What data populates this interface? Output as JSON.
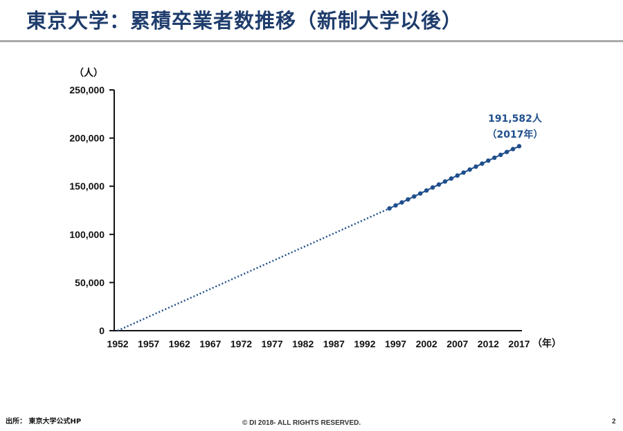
{
  "slide": {
    "title": "東京大学：累積卒業者数推移（新制大学以後）",
    "source": "出所：  東京大学公式HP",
    "copyright": "© DI 2018- ALL RIGHTS RESERVED.",
    "page_number": "2"
  },
  "colors": {
    "title": "#1f3d6d",
    "series": "#1f4e8c",
    "rule": "#a9a9a9"
  },
  "chart_data": {
    "type": "line",
    "title": "",
    "ylabel": "（人）",
    "xlabel": "（年）",
    "xlim": [
      1952,
      2017
    ],
    "ylim": [
      0,
      250000
    ],
    "grid": false,
    "x_ticks": [
      "1952",
      "1957",
      "1962",
      "1967",
      "1972",
      "1977",
      "1982",
      "1987",
      "1992",
      "1997",
      "2002",
      "2007",
      "2012",
      "2017"
    ],
    "y_ticks": [
      "0",
      "50,000",
      "100,000",
      "150,000",
      "200,000",
      "250,000"
    ],
    "series": [
      {
        "style": "dotted",
        "x": [
          1952,
          1996
        ],
        "y": [
          0,
          127000
        ]
      },
      {
        "style": "markers",
        "x": [
          1996,
          1997,
          1998,
          1999,
          2000,
          2001,
          2002,
          2003,
          2004,
          2005,
          2006,
          2007,
          2008,
          2009,
          2010,
          2011,
          2012,
          2013,
          2014,
          2015,
          2016,
          2017
        ],
        "y": [
          127000,
          130100,
          133200,
          136300,
          139400,
          142500,
          145600,
          148700,
          151800,
          154900,
          158000,
          161100,
          164200,
          167300,
          170400,
          173500,
          176600,
          179600,
          182600,
          185600,
          188600,
          191582
        ]
      }
    ],
    "annotation": {
      "text_value": "191,582人",
      "text_year": "（2017年）",
      "x": 2017,
      "y": 191582
    }
  }
}
